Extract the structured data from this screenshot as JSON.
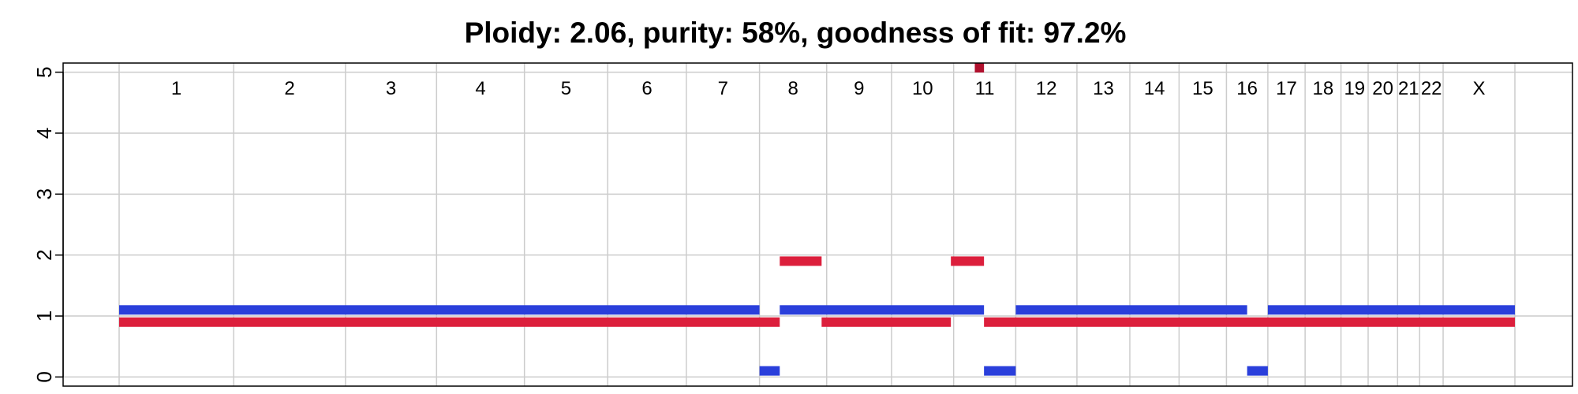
{
  "chart_data": {
    "type": "segment",
    "title": "Ploidy: 2.06, purity: 58%, goodness of fit: 97.2%",
    "xlabel": "",
    "ylabel": "",
    "ylim": [
      -0.15,
      5.15
    ],
    "yticks": [
      0,
      1,
      2,
      3,
      4,
      5
    ],
    "grid": true,
    "colors": {
      "major": "#dc1f3c",
      "minor": "#2a3fdb",
      "grid": "#cccccc",
      "overflow": "#b0102d"
    },
    "chromosomes": [
      {
        "name": "1",
        "start": 0,
        "end": 249
      },
      {
        "name": "2",
        "start": 249,
        "end": 492
      },
      {
        "name": "3",
        "start": 492,
        "end": 690
      },
      {
        "name": "4",
        "start": 690,
        "end": 881
      },
      {
        "name": "5",
        "start": 881,
        "end": 1062
      },
      {
        "name": "6",
        "start": 1062,
        "end": 1233
      },
      {
        "name": "7",
        "start": 1233,
        "end": 1392
      },
      {
        "name": "8",
        "start": 1392,
        "end": 1538
      },
      {
        "name": "9",
        "start": 1538,
        "end": 1679
      },
      {
        "name": "10",
        "start": 1679,
        "end": 1814
      },
      {
        "name": "11",
        "start": 1814,
        "end": 1949
      },
      {
        "name": "12",
        "start": 1949,
        "end": 2082
      },
      {
        "name": "13",
        "start": 2082,
        "end": 2197
      },
      {
        "name": "14",
        "start": 2197,
        "end": 2304
      },
      {
        "name": "15",
        "start": 2304,
        "end": 2407
      },
      {
        "name": "16",
        "start": 2407,
        "end": 2497
      },
      {
        "name": "17",
        "start": 2497,
        "end": 2578
      },
      {
        "name": "18",
        "start": 2578,
        "end": 2656
      },
      {
        "name": "19",
        "start": 2656,
        "end": 2715
      },
      {
        "name": "20",
        "start": 2715,
        "end": 2779
      },
      {
        "name": "21",
        "start": 2779,
        "end": 2827
      },
      {
        "name": "22",
        "start": 2827,
        "end": 2878
      },
      {
        "name": "X",
        "start": 2878,
        "end": 3034
      }
    ],
    "series": [
      {
        "role": "major",
        "segments": [
          {
            "start": 0,
            "end": 1436,
            "cn": 0.9
          },
          {
            "start": 1436,
            "end": 1527,
            "cn": 1.9
          },
          {
            "start": 1527,
            "end": 1808,
            "cn": 0.9
          },
          {
            "start": 1808,
            "end": 1880,
            "cn": 1.9
          },
          {
            "start": 1880,
            "end": 3034,
            "cn": 0.9
          }
        ]
      },
      {
        "role": "minor",
        "segments": [
          {
            "start": 0,
            "end": 1392,
            "cn": 1.1
          },
          {
            "start": 1392,
            "end": 1436,
            "cn": 0.1
          },
          {
            "start": 1436,
            "end": 1880,
            "cn": 1.1
          },
          {
            "start": 1880,
            "end": 1949,
            "cn": 0.1
          },
          {
            "start": 1949,
            "end": 2452,
            "cn": 1.1
          },
          {
            "start": 2452,
            "end": 2497,
            "cn": 0.1
          },
          {
            "start": 2497,
            "end": 3034,
            "cn": 1.1
          }
        ]
      }
    ],
    "overflow_markers": [
      {
        "start": 1860,
        "end": 1880,
        "role": "major"
      }
    ]
  }
}
